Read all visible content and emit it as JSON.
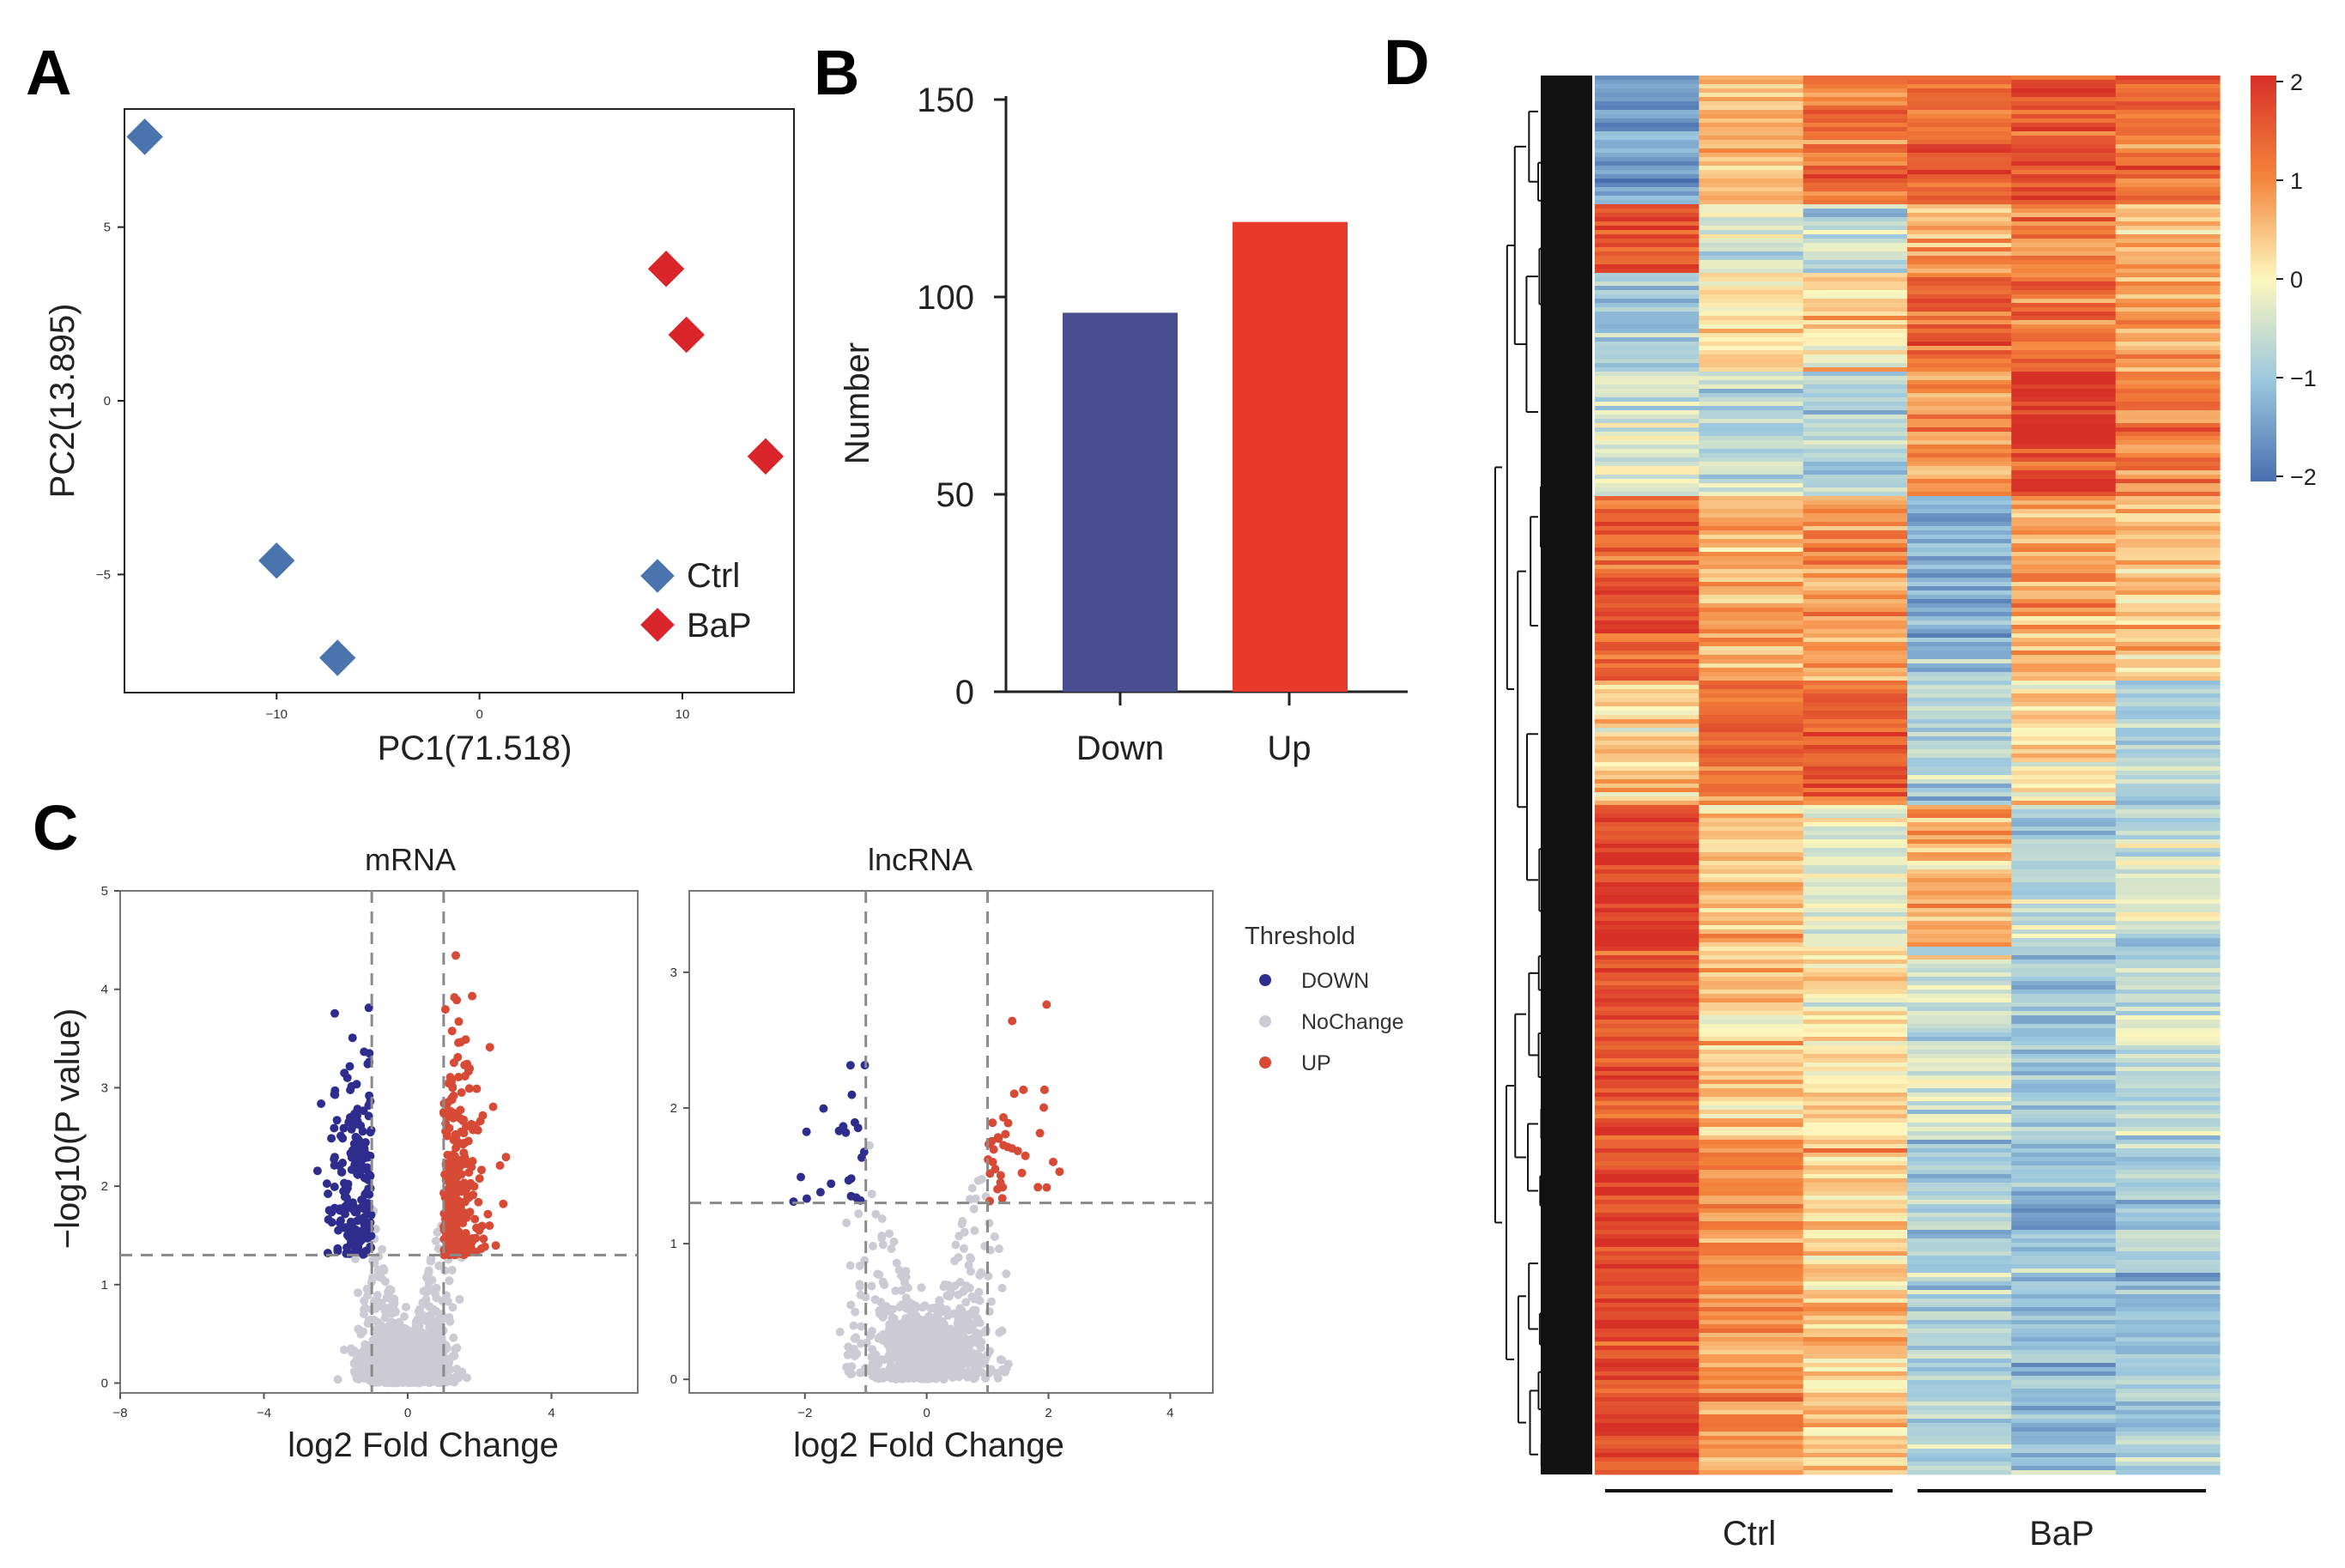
{
  "panels": {
    "A": "A",
    "B": "B",
    "C": "C",
    "D": "D"
  },
  "colors": {
    "ctrl": "#4a74ad",
    "bap": "#d9242a",
    "down_bar": "#4b4d91",
    "up_bar": "#e8392b",
    "volcano_down": "#2e2c8c",
    "volcano_up": "#d64a36",
    "volcano_nochange": "#cccbd3"
  },
  "chart_data": [
    {
      "id": "A",
      "type": "scatter",
      "xlabel": "PC1(71.518)",
      "ylabel": "PC2(13.895)",
      "xlim": [
        -17.5,
        15.5
      ],
      "ylim": [
        -8.4,
        8.4
      ],
      "xticks": [
        -10,
        0,
        10
      ],
      "yticks": [
        -5,
        0,
        5
      ],
      "series": [
        {
          "name": "Ctrl",
          "points": [
            [
              -16.5,
              7.6
            ],
            [
              -10.0,
              -4.6
            ],
            [
              -7.0,
              -7.4
            ]
          ]
        },
        {
          "name": "BaP",
          "points": [
            [
              9.2,
              3.8
            ],
            [
              10.2,
              1.9
            ],
            [
              14.1,
              -1.6
            ]
          ]
        }
      ],
      "legend": "bottom-right"
    },
    {
      "id": "B",
      "type": "bar",
      "categories": [
        "Down",
        "Up"
      ],
      "values": [
        96,
        119
      ],
      "ylabel": "Number",
      "ylim": [
        0,
        150
      ],
      "yticks": [
        0,
        50,
        100,
        150
      ]
    },
    {
      "id": "C1",
      "type": "scatter",
      "title": "mRNA",
      "xlabel": "log2 Fold Change",
      "ylabel": "−log10(P value)",
      "xlim": [
        -8,
        6.4
      ],
      "ylim": [
        -0.1,
        5.0
      ],
      "xticks": [
        -8,
        -4,
        0,
        4
      ],
      "yticks": [
        0,
        1,
        2,
        3,
        4,
        5
      ],
      "fc_threshold": 1,
      "p_threshold": 1.3,
      "counts": {
        "DOWN": 190,
        "UP": 270,
        "NoChange": 2600
      }
    },
    {
      "id": "C2",
      "type": "scatter",
      "title": "lncRNA",
      "xlabel": "log2 Fold Change",
      "xlim": [
        -3.9,
        4.7
      ],
      "ylim": [
        -0.1,
        3.6
      ],
      "xticks": [
        -2,
        0,
        2,
        4
      ],
      "yticks": [
        0,
        1,
        2,
        3
      ],
      "fc_threshold": 1,
      "p_threshold": 1.3,
      "counts": {
        "DOWN": 22,
        "UP": 36,
        "NoChange": 1500
      }
    },
    {
      "id": "D",
      "type": "heatmap",
      "groups": [
        "Ctrl",
        "BaP"
      ],
      "columns": 6,
      "colorbar": {
        "range": [
          -2,
          2
        ],
        "ticks": [
          "2",
          "1",
          "0",
          "−1",
          "−2"
        ]
      }
    }
  ],
  "threshold_legend": {
    "title": "Threshold",
    "items": [
      "DOWN",
      "NoChange",
      "UP"
    ]
  }
}
